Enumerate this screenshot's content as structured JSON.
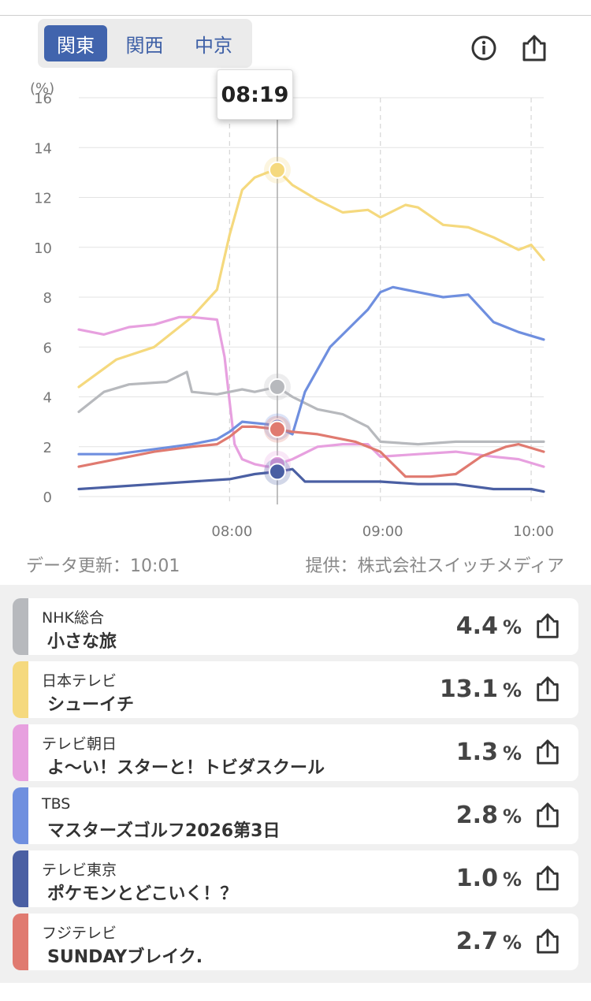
{
  "regions": [
    "関東",
    "関西",
    "中京"
  ],
  "header_icons": {
    "info": "info-icon",
    "share": "share-icon"
  },
  "tooltip_time": "08:19",
  "footer": {
    "updated": "データ更新：10:01",
    "provider": "提供：株式会社スイッチメディア"
  },
  "chart_data": {
    "type": "line",
    "ylabel": "(%)",
    "ylim": [
      0,
      16
    ],
    "yticks": [
      "0",
      "2",
      "4",
      "6",
      "8",
      "10",
      "12",
      "14",
      "16"
    ],
    "xticks": [
      "08:00",
      "09:00",
      "10:00"
    ],
    "x_range": [
      "07:00",
      "10:05"
    ],
    "cursor_time": "08:19",
    "grid": true,
    "series": [
      {
        "name": "日本テレビ",
        "color": "#f5d97e",
        "x": [
          "07:00",
          "07:15",
          "07:30",
          "07:45",
          "07:55",
          "08:00",
          "08:05",
          "08:10",
          "08:15",
          "08:19",
          "08:25",
          "08:35",
          "08:45",
          "08:55",
          "09:00",
          "09:10",
          "09:15",
          "09:25",
          "09:35",
          "09:45",
          "09:55",
          "10:00",
          "10:05"
        ],
        "values": [
          4.4,
          5.5,
          6.0,
          7.2,
          8.3,
          10.5,
          12.3,
          12.8,
          13.0,
          13.1,
          12.5,
          11.9,
          11.4,
          11.5,
          11.2,
          11.7,
          11.6,
          10.9,
          10.8,
          10.4,
          9.9,
          10.1,
          9.5
        ]
      },
      {
        "name": "テレビ朝日",
        "color": "#e7a0df",
        "x": [
          "07:00",
          "07:10",
          "07:20",
          "07:30",
          "07:40",
          "07:45",
          "07:55",
          "07:58",
          "08:00",
          "08:02",
          "08:05",
          "08:10",
          "08:15",
          "08:19",
          "08:25",
          "08:35",
          "08:45",
          "08:55",
          "09:00",
          "09:15",
          "09:30",
          "09:45",
          "09:55",
          "10:05"
        ],
        "values": [
          6.7,
          6.5,
          6.8,
          6.9,
          7.2,
          7.2,
          7.1,
          5.6,
          3.8,
          2.1,
          1.5,
          1.3,
          1.2,
          1.3,
          1.5,
          2.0,
          2.1,
          2.1,
          1.6,
          1.7,
          1.8,
          1.6,
          1.5,
          1.2
        ]
      },
      {
        "name": "NHK総合",
        "color": "#b7b9bd",
        "x": [
          "07:00",
          "07:10",
          "07:20",
          "07:35",
          "07:43",
          "07:45",
          "07:55",
          "08:00",
          "08:05",
          "08:10",
          "08:19",
          "08:25",
          "08:35",
          "08:45",
          "08:55",
          "09:00",
          "09:15",
          "09:30",
          "09:45",
          "10:05"
        ],
        "values": [
          3.4,
          4.2,
          4.5,
          4.6,
          5.0,
          4.2,
          4.1,
          4.2,
          4.3,
          4.2,
          4.4,
          4.0,
          3.5,
          3.3,
          2.8,
          2.2,
          2.1,
          2.2,
          2.2,
          2.2
        ]
      },
      {
        "name": "TBS",
        "color": "#6f8fdf",
        "x": [
          "07:00",
          "07:15",
          "07:30",
          "07:45",
          "07:55",
          "08:00",
          "08:05",
          "08:15",
          "08:19",
          "08:25",
          "08:30",
          "08:40",
          "08:50",
          "08:55",
          "09:00",
          "09:05",
          "09:15",
          "09:25",
          "09:35",
          "09:45",
          "09:55",
          "10:05"
        ],
        "values": [
          1.7,
          1.7,
          1.9,
          2.1,
          2.3,
          2.6,
          3.0,
          2.9,
          2.8,
          2.5,
          4.2,
          6.0,
          7.0,
          7.5,
          8.2,
          8.4,
          8.2,
          8.0,
          8.1,
          7.0,
          6.6,
          6.3
        ]
      },
      {
        "name": "フジテレビ",
        "color": "#e07a70",
        "x": [
          "07:00",
          "07:15",
          "07:30",
          "07:45",
          "07:55",
          "08:00",
          "08:05",
          "08:10",
          "08:19",
          "08:25",
          "08:35",
          "08:50",
          "09:00",
          "09:05",
          "09:10",
          "09:20",
          "09:30",
          "09:40",
          "09:50",
          "09:55",
          "10:05"
        ],
        "values": [
          1.2,
          1.5,
          1.8,
          2.0,
          2.1,
          2.4,
          2.8,
          2.8,
          2.7,
          2.6,
          2.5,
          2.2,
          1.8,
          1.3,
          0.8,
          0.8,
          0.9,
          1.6,
          2.0,
          2.1,
          1.8
        ]
      },
      {
        "name": "テレビ東京",
        "color": "#4a5fa3",
        "x": [
          "07:00",
          "07:15",
          "07:30",
          "07:45",
          "08:00",
          "08:10",
          "08:19",
          "08:25",
          "08:30",
          "08:45",
          "09:00",
          "09:15",
          "09:30",
          "09:45",
          "10:00",
          "10:05"
        ],
        "values": [
          0.3,
          0.4,
          0.5,
          0.6,
          0.7,
          0.9,
          1.0,
          1.1,
          0.6,
          0.6,
          0.6,
          0.5,
          0.5,
          0.3,
          0.3,
          0.2
        ]
      }
    ]
  },
  "rankings": [
    {
      "station": "NHK総合",
      "program": "小さな旅",
      "rating": "4.4",
      "unit": "%",
      "color": "#b7b9bd"
    },
    {
      "station": "日本テレビ",
      "program": "シューイチ",
      "rating": "13.1",
      "unit": "%",
      "color": "#f5d97e"
    },
    {
      "station": "テレビ朝日",
      "program": "よ～い！スターと！トビダスクール",
      "rating": "1.3",
      "unit": "%",
      "color": "#e7a0df"
    },
    {
      "station": "TBS",
      "program": "マスターズゴルフ2026第3日",
      "rating": "2.8",
      "unit": "%",
      "color": "#6f8fdf"
    },
    {
      "station": "テレビ東京",
      "program": "ポケモンとどこいく！？",
      "rating": "1.0",
      "unit": "%",
      "color": "#4a5fa3"
    },
    {
      "station": "フジテレビ",
      "program": "SUNDAYブレイク.",
      "rating": "2.7",
      "unit": "%",
      "color": "#e07a70"
    }
  ]
}
